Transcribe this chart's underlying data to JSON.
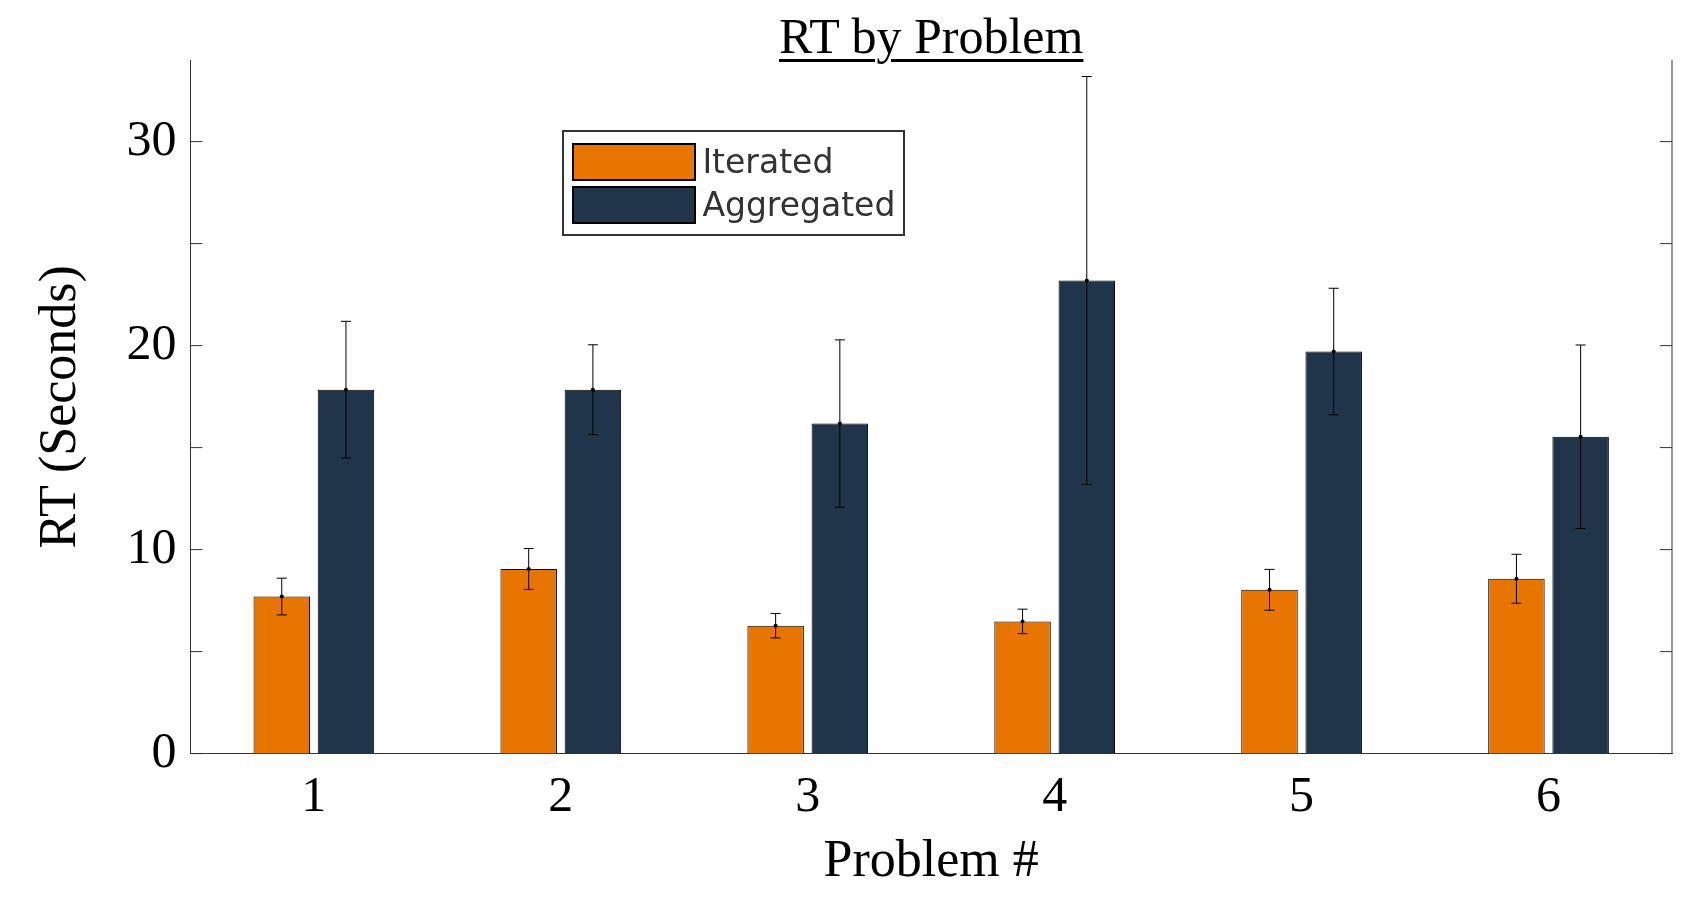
{
  "chart_data": {
    "type": "bar",
    "title": "RT by Problem",
    "xlabel": "Problem #",
    "ylabel": "RT (Seconds)",
    "categories": [
      "1",
      "2",
      "3",
      "4",
      "5",
      "6"
    ],
    "series": [
      {
        "name": "Iterated",
        "color": "#e87500",
        "values": [
          7.7,
          9.05,
          6.27,
          6.48,
          8.03,
          8.57
        ],
        "errors": [
          0.9,
          1.0,
          0.6,
          0.6,
          1.0,
          1.2
        ]
      },
      {
        "name": "Aggregated",
        "color": "#203549",
        "values": [
          17.84,
          17.84,
          16.18,
          23.19,
          19.71,
          15.53
        ],
        "errors": [
          3.35,
          2.2,
          4.1,
          10.0,
          3.1,
          4.5
        ]
      }
    ],
    "ylim": [
      0,
      34
    ],
    "yticks": [
      0,
      {
        "value": 5,
        "label": null
      },
      10,
      {
        "value": 15,
        "label": null
      },
      20,
      {
        "value": 25,
        "label": null
      },
      30
    ],
    "grid": false,
    "legend": "top"
  }
}
